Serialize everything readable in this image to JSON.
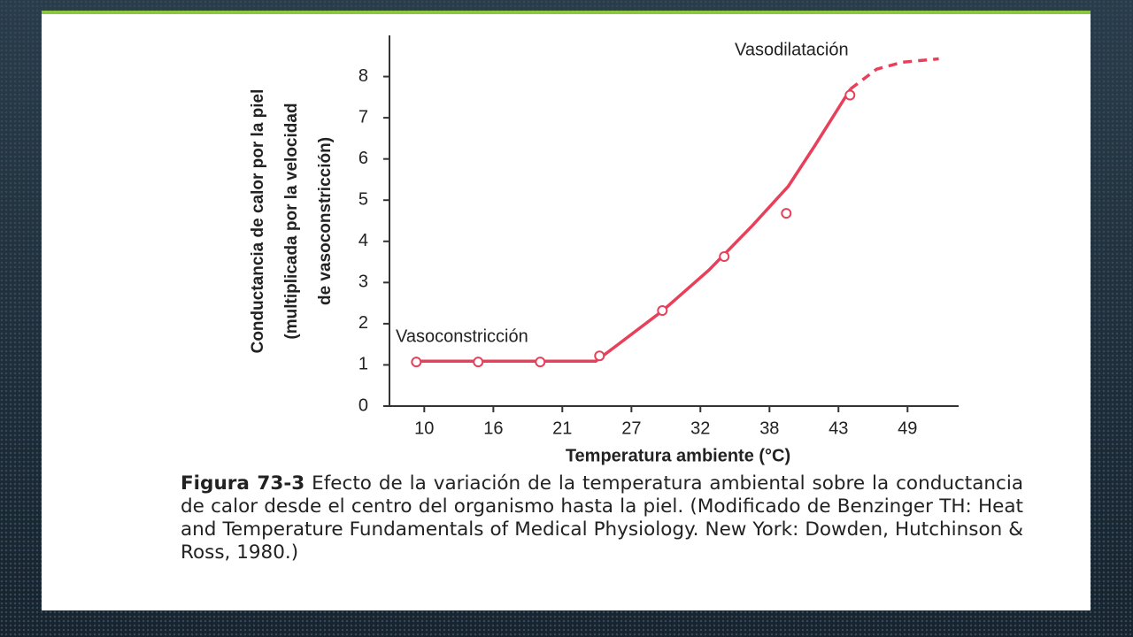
{
  "chart_data": {
    "type": "line",
    "y_label": [
      "Conductancia de calor por la piel",
      "(multiplicada por la velocidad",
      "de vasoconstricción)"
    ],
    "x_label": "Temperatura ambiente (°C)",
    "annotations": [
      "Vasoconstricción",
      "Vasodilatación"
    ],
    "xlim": [
      7.2,
      53
    ],
    "ylim": [
      0,
      9
    ],
    "xticks": [
      10,
      {
        "value": 15.56,
        "label": "16"
      },
      {
        "value": 21.11,
        "label": "21"
      },
      {
        "value": 26.67,
        "label": "27"
      },
      {
        "value": 32.22,
        "label": "32"
      },
      {
        "value": 37.78,
        "label": "38"
      },
      {
        "value": 43.33,
        "label": "43"
      },
      {
        "value": 48.89,
        "label": "49"
      }
    ],
    "yticks": [
      0,
      1,
      2,
      3,
      4,
      5,
      6,
      7,
      8
    ],
    "series": [
      {
        "color": "#e8405a",
        "dashed": false,
        "x": [
          9.15,
          23.8,
          25.7,
          29.2,
          32.9,
          36.4,
          39.3,
          41.4,
          44.3
        ],
        "values": [
          1.09,
          1.09,
          1.52,
          2.32,
          3.3,
          4.38,
          5.34,
          6.31,
          7.7
        ]
      },
      {
        "color": "#e8405a",
        "dashed": true,
        "x": [
          44.3,
          46.4,
          48.5,
          51.4
        ],
        "values": [
          7.7,
          8.18,
          8.35,
          8.43
        ]
      }
    ],
    "points": {
      "color": "#e8405a",
      "x": [
        9.36,
        14.34,
        19.33,
        24.1,
        29.16,
        34.14,
        39.13,
        44.26
      ],
      "values": [
        1.07,
        1.07,
        1.07,
        1.22,
        2.32,
        3.63,
        4.68,
        7.55
      ]
    }
  },
  "caption": {
    "label": "Figura 73-3",
    "text": "Efecto de la variación de la temperatura ambiental sobre la conductancia de calor desde el centro del organismo hasta la piel. (Modificado de Benzinger TH: Heat and Temperature Fundamentals of Medical Physiology. New York: Dowden, Hutchinson & Ross, 1980.)"
  }
}
